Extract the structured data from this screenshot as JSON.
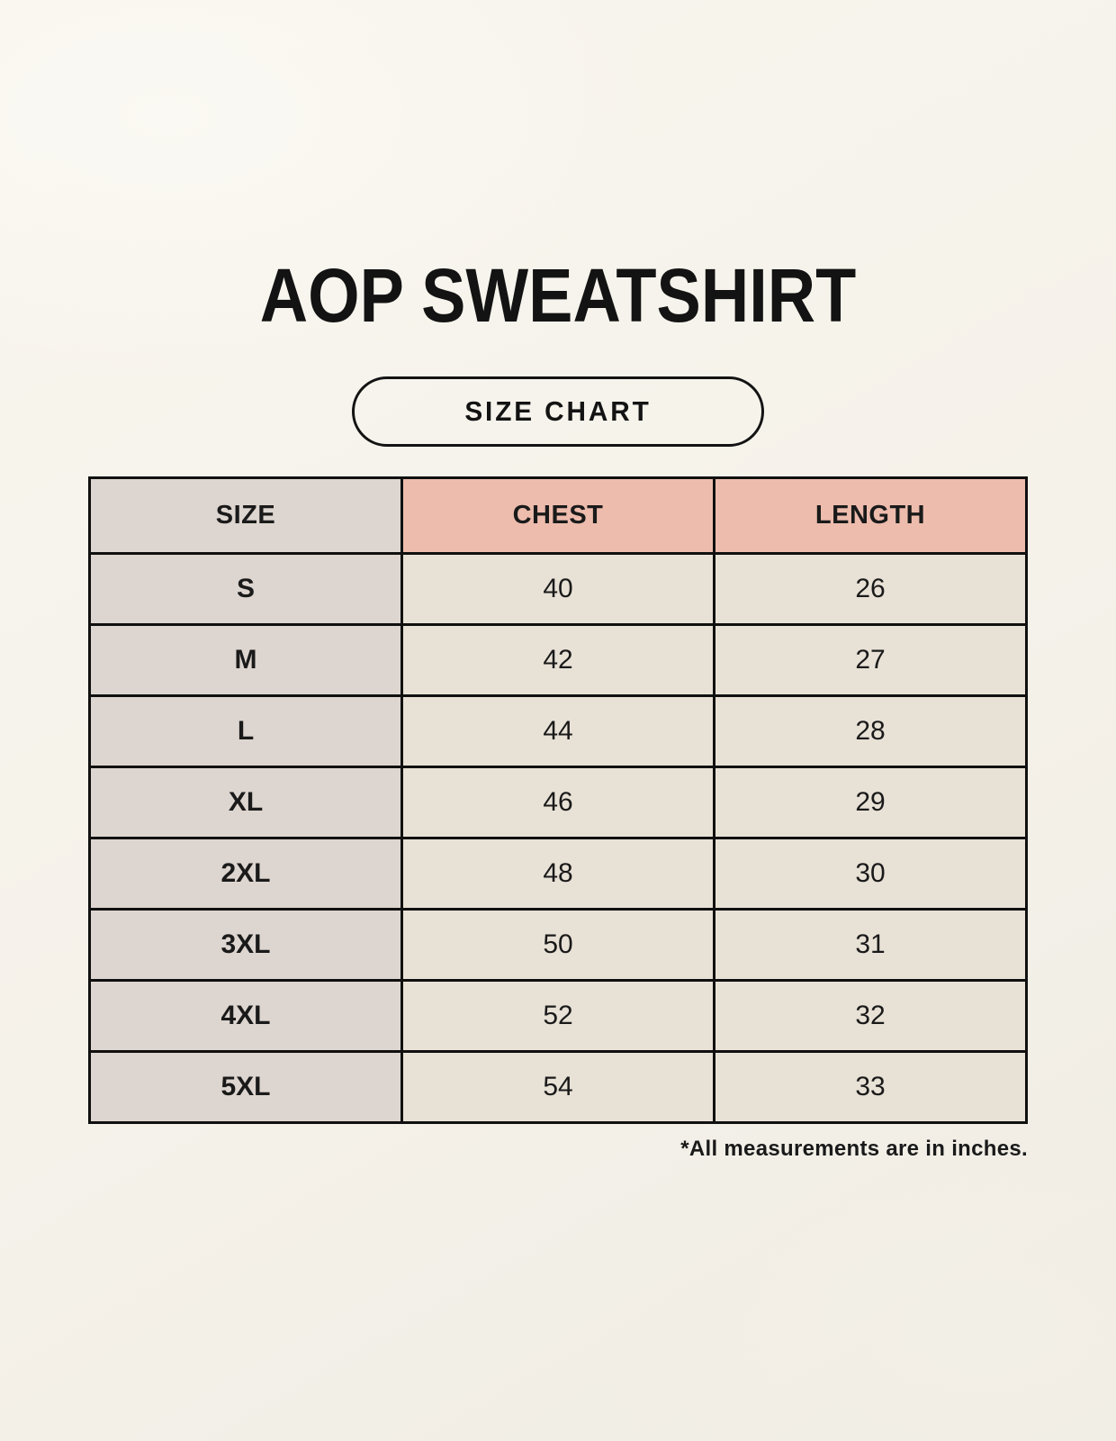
{
  "page": {
    "title": "AOP SWEATSHIRT",
    "size_chart_badge": "SIZE CHART",
    "footnote": "*All measurements are in inches."
  },
  "chart_data": {
    "type": "table",
    "title": "AOP SWEATSHIRT",
    "subtitle": "SIZE CHART",
    "columns": [
      "SIZE",
      "CHEST",
      "LENGTH"
    ],
    "rows": [
      [
        "S",
        "40",
        "26"
      ],
      [
        "M",
        "42",
        "27"
      ],
      [
        "L",
        "44",
        "28"
      ],
      [
        "XL",
        "46",
        "29"
      ],
      [
        "2XL",
        "48",
        "30"
      ],
      [
        "3XL",
        "50",
        "31"
      ],
      [
        "4XL",
        "52",
        "32"
      ],
      [
        "5XL",
        "54",
        "33"
      ]
    ],
    "units_note": "*All measurements are in inches.",
    "units": "inches"
  },
  "colors": {
    "background": "#f5f2ea",
    "table_border": "#101010",
    "size_column_bg": "#ddd5cf",
    "measurement_header_bg": "#edbcad",
    "value_cell_bg": "#e8e1d6",
    "text": "#1a1a1a"
  }
}
